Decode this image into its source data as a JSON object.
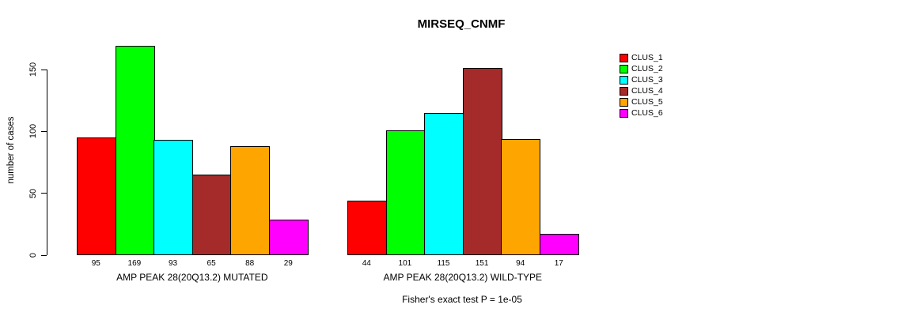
{
  "chart_data": {
    "type": "bar",
    "title": "MIRSEQ_CNMF",
    "ylabel": "number of cases",
    "ylim": [
      0,
      150
    ],
    "yticks": [
      0,
      50,
      100,
      150
    ],
    "grid": false,
    "legend_position": "top-right",
    "legend_entries": [
      {
        "label": "CLUS_1",
        "color": "#FF0000"
      },
      {
        "label": "CLUS_2",
        "color": "#00FF00"
      },
      {
        "label": "CLUS_3",
        "color": "#00FFFF"
      },
      {
        "label": "CLUS_4",
        "color": "#A52A2A"
      },
      {
        "label": "CLUS_5",
        "color": "#FFA500"
      },
      {
        "label": "CLUS_6",
        "color": "#FF00FF"
      }
    ],
    "groups": [
      {
        "label": "AMP PEAK 28(20Q13.2) MUTATED",
        "values": [
          95,
          169,
          93,
          65,
          88,
          29
        ]
      },
      {
        "label": "AMP PEAK 28(20Q13.2) WILD-TYPE",
        "values": [
          44,
          101,
          115,
          151,
          94,
          17
        ]
      }
    ],
    "note": "Fisher's exact test P = 1e-05"
  }
}
